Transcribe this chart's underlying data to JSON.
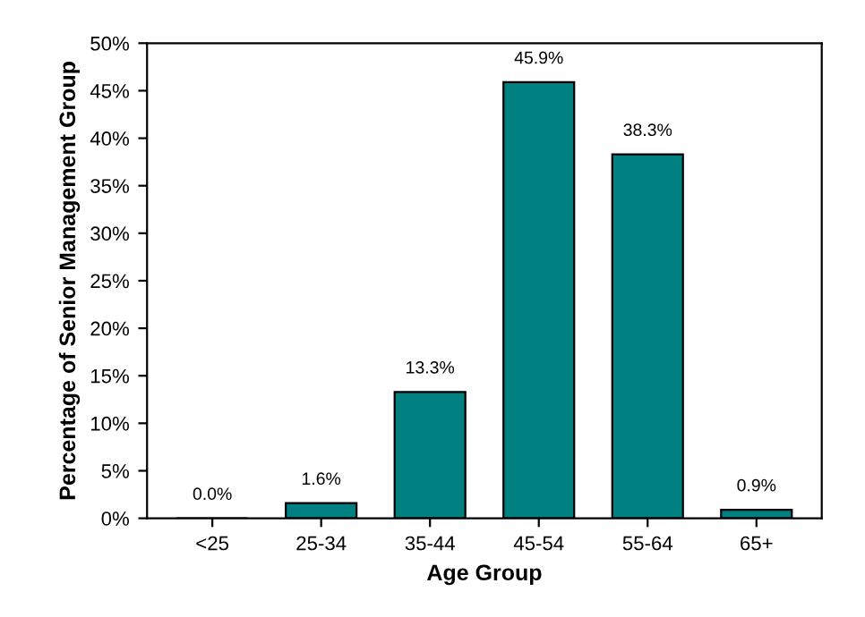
{
  "chart_data": {
    "type": "bar",
    "xlabel": "Age Group",
    "ylabel": "Percentage of Senior Management Group",
    "categories": [
      "<25",
      "25-34",
      "35-44",
      "45-54",
      "55-64",
      "65+"
    ],
    "values": [
      0.0,
      1.6,
      13.3,
      45.9,
      38.3,
      0.9
    ],
    "value_labels": [
      "0.0%",
      "1.6%",
      "13.3%",
      "45.9%",
      "38.3%",
      "0.9%"
    ],
    "color": "#008080",
    "ylim": [
      0,
      50
    ],
    "yticks": [
      {
        "value": 0,
        "label": "0%"
      },
      {
        "value": 5,
        "label": "5%"
      },
      {
        "value": 10,
        "label": "10%"
      },
      {
        "value": 15,
        "label": "15%"
      },
      {
        "value": 20,
        "label": "20%"
      },
      {
        "value": 25,
        "label": "25%"
      },
      {
        "value": 30,
        "label": "30%"
      },
      {
        "value": 35,
        "label": "35%"
      },
      {
        "value": 40,
        "label": "40%"
      },
      {
        "value": 45,
        "label": "45%"
      },
      {
        "value": 50,
        "label": "50%"
      }
    ],
    "grid": false,
    "legend": false
  }
}
